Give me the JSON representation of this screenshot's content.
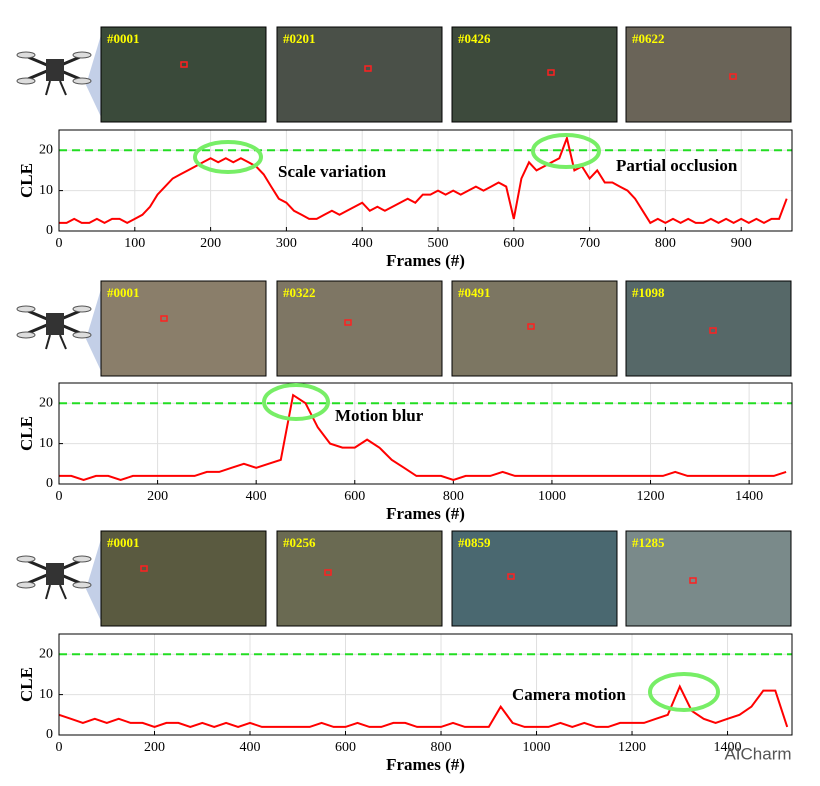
{
  "chart_data": [
    {
      "type": "line",
      "ylabel": "CLE",
      "xlabel": "Frames (#)",
      "color": "#ff0000",
      "threshold": 20,
      "threshold_color": "#22dd22",
      "grid": true,
      "xlim": [
        0,
        967
      ],
      "ylim": [
        0,
        25
      ],
      "xticks": [
        0,
        100,
        200,
        300,
        400,
        500,
        600,
        700,
        800,
        900
      ],
      "yticks": [
        0,
        10,
        20
      ],
      "annotations": [
        "Scale variation",
        "Partial occlusion"
      ],
      "frames": [
        "#0001",
        "#0201",
        "#0426",
        "#0622"
      ],
      "x": [
        0,
        10,
        20,
        30,
        40,
        50,
        60,
        70,
        80,
        90,
        100,
        110,
        120,
        130,
        140,
        150,
        160,
        170,
        180,
        190,
        200,
        210,
        220,
        230,
        240,
        250,
        260,
        270,
        280,
        290,
        300,
        310,
        320,
        330,
        340,
        350,
        360,
        370,
        380,
        390,
        400,
        410,
        420,
        430,
        440,
        450,
        460,
        470,
        480,
        490,
        500,
        510,
        520,
        530,
        540,
        550,
        560,
        570,
        580,
        590,
        600,
        610,
        620,
        630,
        640,
        650,
        660,
        670,
        680,
        690,
        700,
        710,
        720,
        730,
        740,
        750,
        760,
        770,
        780,
        790,
        800,
        810,
        820,
        830,
        840,
        850,
        860,
        870,
        880,
        890,
        900,
        910,
        920,
        930,
        940,
        950,
        960
      ],
      "values": [
        2,
        2,
        3,
        2,
        2,
        3,
        2,
        3,
        3,
        2,
        3,
        4,
        6,
        9,
        11,
        13,
        14,
        15,
        16,
        17,
        18,
        17,
        18,
        17,
        18,
        17,
        16,
        14,
        11,
        8,
        7,
        5,
        4,
        3,
        3,
        4,
        5,
        4,
        5,
        6,
        7,
        5,
        6,
        5,
        6,
        7,
        8,
        7,
        9,
        9,
        10,
        9,
        10,
        9,
        10,
        11,
        10,
        11,
        12,
        11,
        3,
        13,
        17,
        15,
        16,
        17,
        18,
        23,
        15,
        16,
        13,
        15,
        12,
        12,
        11,
        10,
        8,
        5,
        2,
        3,
        2,
        3,
        2,
        3,
        2,
        2,
        3,
        2,
        3,
        2,
        3,
        2,
        3,
        2,
        3,
        3,
        8
      ]
    },
    {
      "type": "line",
      "ylabel": "CLE",
      "xlabel": "Frames (#)",
      "color": "#ff0000",
      "threshold": 20,
      "threshold_color": "#22dd22",
      "grid": true,
      "xlim": [
        0,
        1487
      ],
      "ylim": [
        0,
        25
      ],
      "xticks": [
        0,
        200,
        400,
        600,
        800,
        1000,
        1200,
        1400
      ],
      "yticks": [
        0,
        10,
        20
      ],
      "annotations": [
        "Motion blur"
      ],
      "frames": [
        "#0001",
        "#0322",
        "#0491",
        "#1098"
      ],
      "x": [
        0,
        25,
        50,
        75,
        100,
        125,
        150,
        175,
        200,
        225,
        250,
        275,
        300,
        325,
        350,
        375,
        400,
        425,
        450,
        475,
        500,
        525,
        550,
        575,
        600,
        625,
        650,
        675,
        700,
        725,
        750,
        775,
        800,
        825,
        850,
        875,
        900,
        925,
        950,
        975,
        1000,
        1025,
        1050,
        1075,
        1100,
        1125,
        1150,
        1175,
        1200,
        1225,
        1250,
        1275,
        1300,
        1325,
        1350,
        1375,
        1400,
        1425,
        1450,
        1475
      ],
      "values": [
        2,
        2,
        1,
        2,
        2,
        1,
        2,
        2,
        2,
        2,
        2,
        2,
        3,
        3,
        4,
        5,
        4,
        5,
        6,
        22,
        20,
        14,
        10,
        9,
        9,
        11,
        9,
        6,
        4,
        2,
        2,
        2,
        1,
        2,
        2,
        2,
        3,
        2,
        2,
        2,
        2,
        2,
        2,
        2,
        2,
        2,
        2,
        2,
        2,
        2,
        3,
        2,
        2,
        2,
        2,
        2,
        2,
        2,
        2,
        3
      ]
    },
    {
      "type": "line",
      "ylabel": "CLE",
      "xlabel": "Frames (#)",
      "color": "#ff0000",
      "threshold": 20,
      "threshold_color": "#22dd22",
      "grid": true,
      "xlim": [
        0,
        1535
      ],
      "ylim": [
        0,
        25
      ],
      "xticks": [
        0,
        200,
        400,
        600,
        800,
        1000,
        1200,
        1400
      ],
      "yticks": [
        0,
        10,
        20
      ],
      "annotations": [
        "Camera motion"
      ],
      "frames": [
        "#0001",
        "#0256",
        "#0859",
        "#1285"
      ],
      "x": [
        0,
        25,
        50,
        75,
        100,
        125,
        150,
        175,
        200,
        225,
        250,
        275,
        300,
        325,
        350,
        375,
        400,
        425,
        450,
        475,
        500,
        525,
        550,
        575,
        600,
        625,
        650,
        675,
        700,
        725,
        750,
        775,
        800,
        825,
        850,
        875,
        900,
        925,
        950,
        975,
        1000,
        1025,
        1050,
        1075,
        1100,
        1125,
        1150,
        1175,
        1200,
        1225,
        1250,
        1275,
        1300,
        1325,
        1350,
        1375,
        1400,
        1425,
        1450,
        1475,
        1500,
        1525
      ],
      "values": [
        5,
        4,
        3,
        4,
        3,
        4,
        3,
        3,
        2,
        3,
        3,
        2,
        3,
        2,
        3,
        2,
        3,
        2,
        2,
        2,
        2,
        2,
        3,
        2,
        2,
        3,
        2,
        2,
        3,
        3,
        2,
        2,
        2,
        3,
        2,
        2,
        2,
        7,
        3,
        2,
        2,
        2,
        3,
        2,
        3,
        2,
        2,
        3,
        3,
        3,
        4,
        5,
        12,
        6,
        4,
        3,
        4,
        5,
        7,
        11,
        11,
        2
      ]
    }
  ],
  "watermark": "AICharm"
}
